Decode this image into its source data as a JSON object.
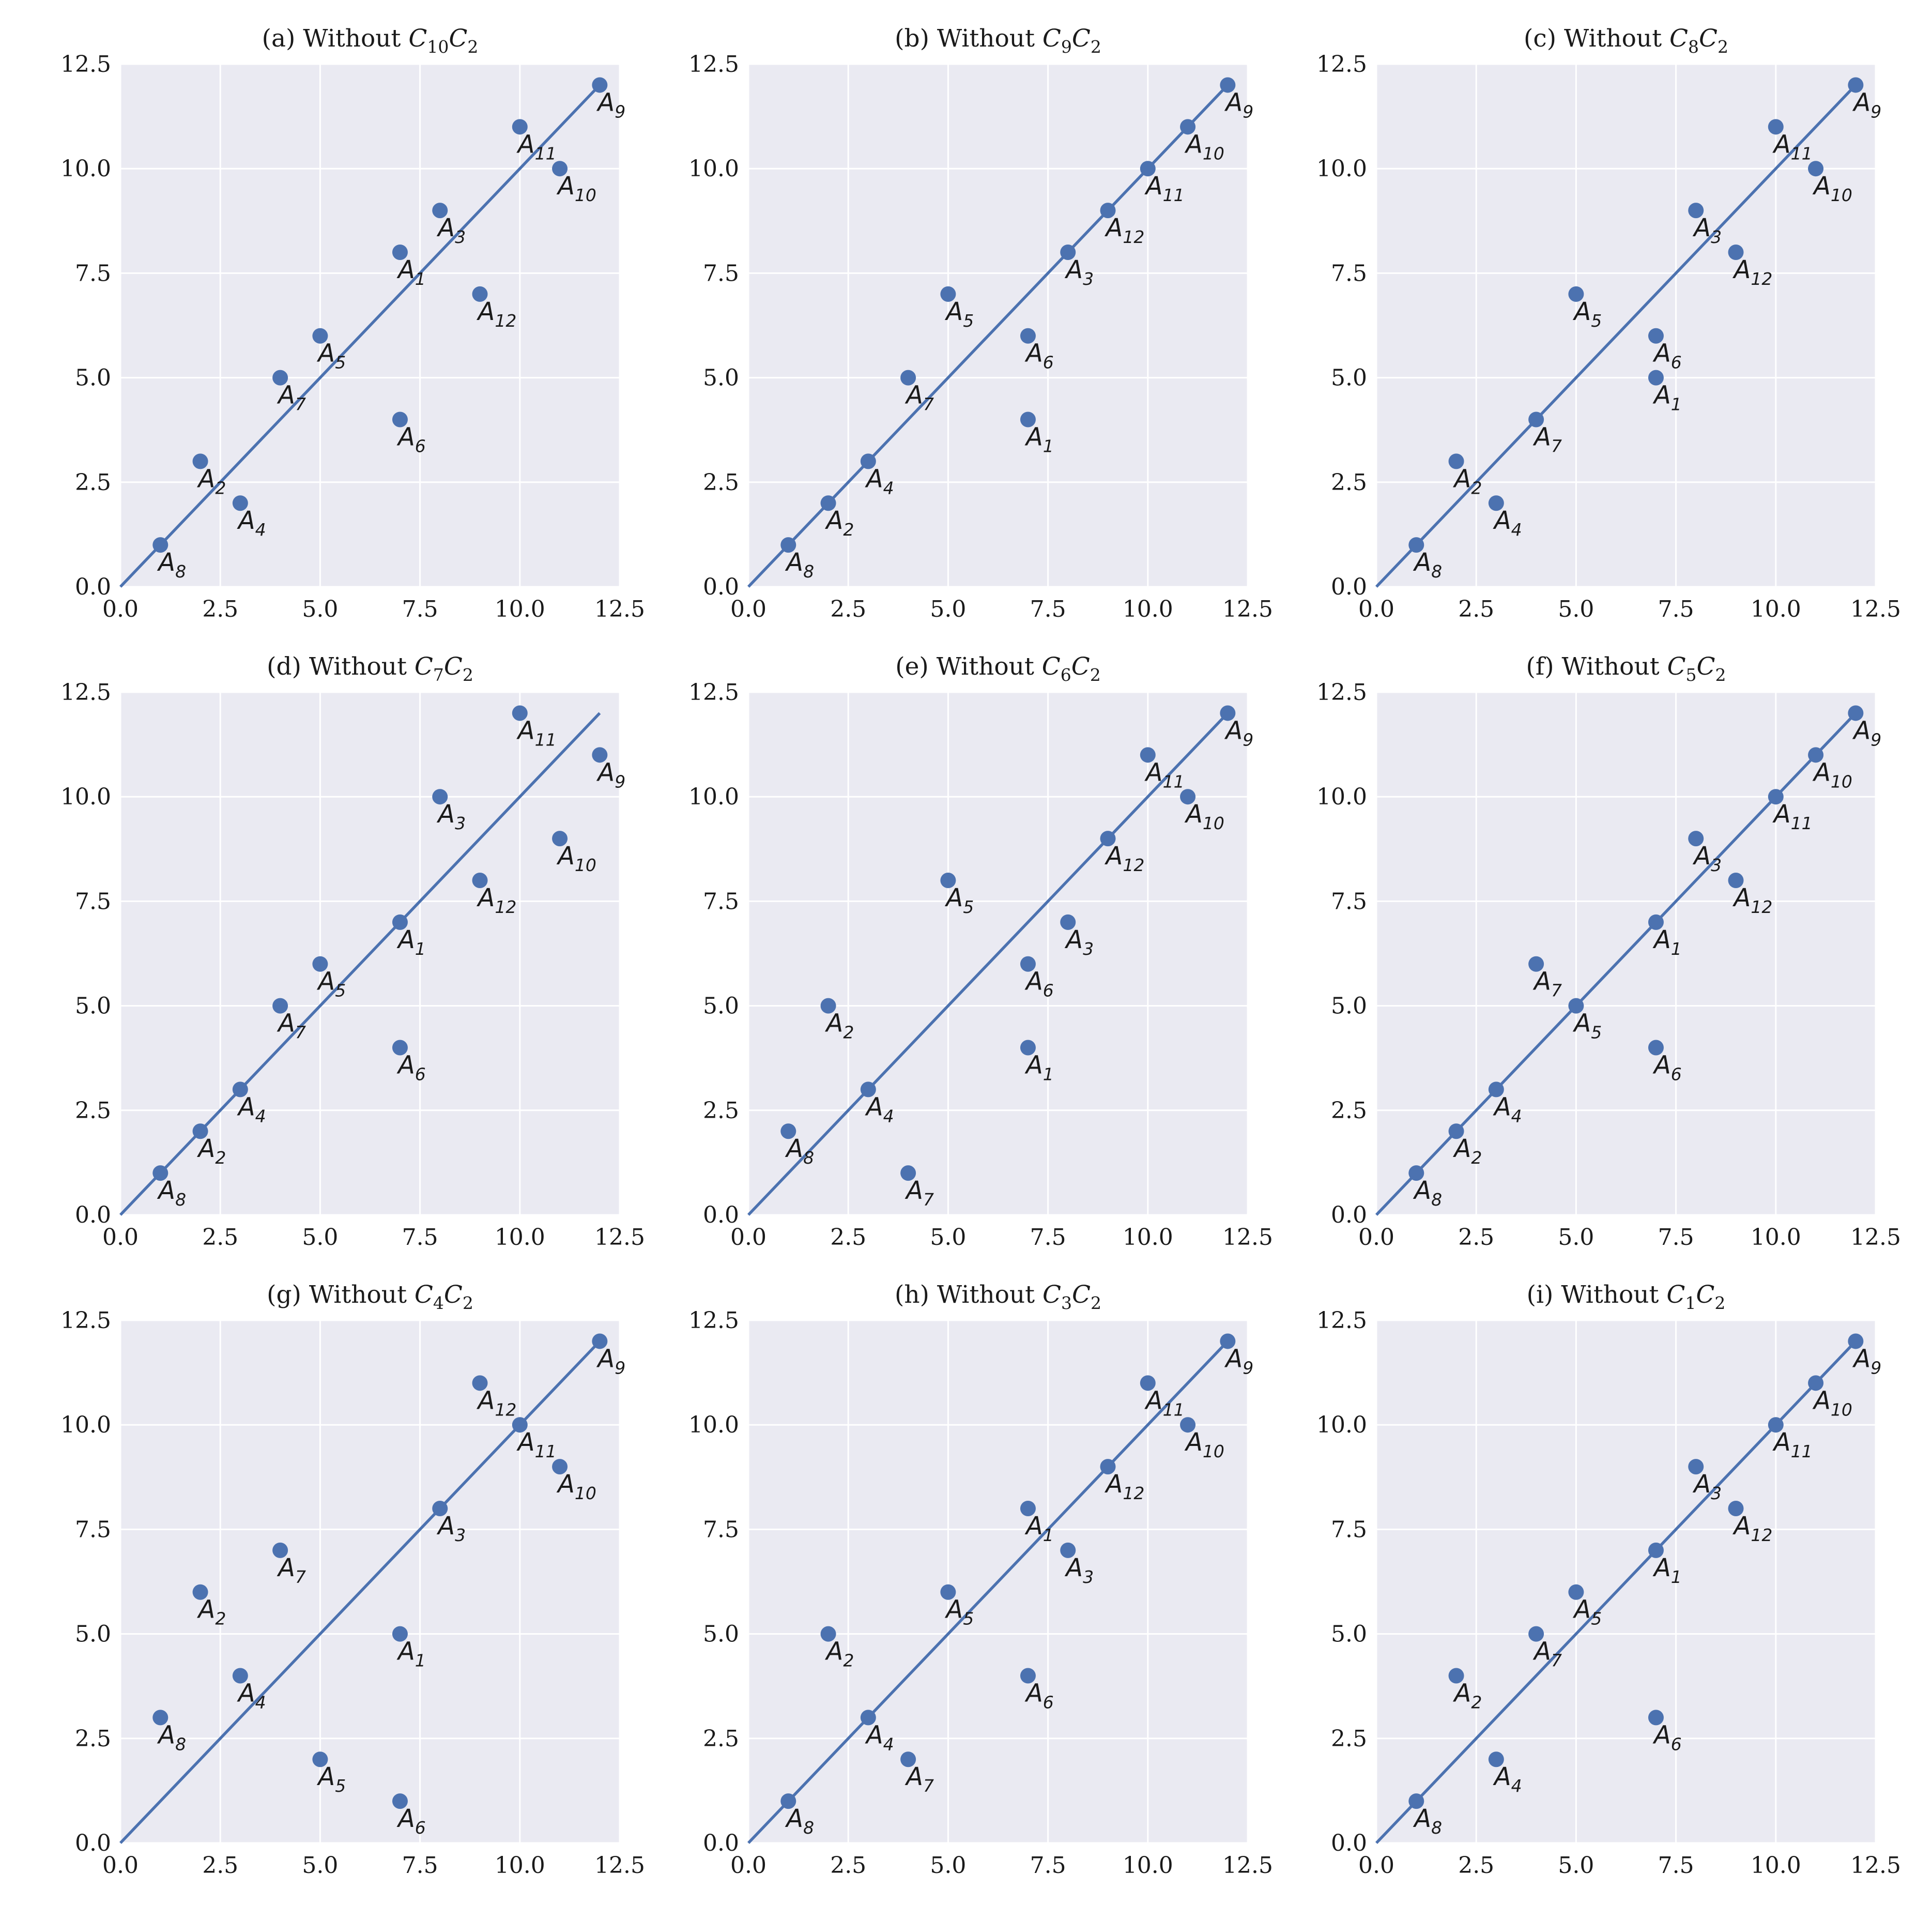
{
  "colors": {
    "plot_bg": "#EAEAF2",
    "grid": "#FFFFFF",
    "marker": "#4C72B0",
    "line": "#4C72B0"
  },
  "chart_data": [
    {
      "type": "scatter",
      "title": "(a) Without C10C2",
      "title_parts": {
        "prefix": "(a) Without",
        "c1": "10",
        "c2": "2"
      },
      "xlim": [
        0,
        12.5
      ],
      "ylim": [
        0,
        12.5
      ],
      "xticks": [
        "0.0",
        "2.5",
        "5.0",
        "7.5",
        "10.0",
        "12.5"
      ],
      "yticks": [
        "0.0",
        "2.5",
        "5.0",
        "7.5",
        "10.0",
        "12.5"
      ],
      "reference_line": {
        "x": [
          0,
          12
        ],
        "y": [
          0,
          12
        ]
      },
      "points": [
        {
          "label": "A1",
          "x": 7,
          "y": 8
        },
        {
          "label": "A2",
          "x": 2,
          "y": 3
        },
        {
          "label": "A3",
          "x": 8,
          "y": 9
        },
        {
          "label": "A4",
          "x": 3,
          "y": 2
        },
        {
          "label": "A5",
          "x": 5,
          "y": 6
        },
        {
          "label": "A6",
          "x": 7,
          "y": 4
        },
        {
          "label": "A7",
          "x": 4,
          "y": 5
        },
        {
          "label": "A8",
          "x": 1,
          "y": 1
        },
        {
          "label": "A9",
          "x": 12,
          "y": 12
        },
        {
          "label": "A10",
          "x": 11,
          "y": 10
        },
        {
          "label": "A11",
          "x": 10,
          "y": 11
        },
        {
          "label": "A12",
          "x": 9,
          "y": 7
        }
      ]
    },
    {
      "type": "scatter",
      "title": "(b) Without C9C2",
      "title_parts": {
        "prefix": "(b) Without",
        "c1": "9",
        "c2": "2"
      },
      "xlim": [
        0,
        12.5
      ],
      "ylim": [
        0,
        12.5
      ],
      "xticks": [
        "0.0",
        "2.5",
        "5.0",
        "7.5",
        "10.0",
        "12.5"
      ],
      "yticks": [
        "0.0",
        "2.5",
        "5.0",
        "7.5",
        "10.0",
        "12.5"
      ],
      "reference_line": {
        "x": [
          0,
          12
        ],
        "y": [
          0,
          12
        ]
      },
      "points": [
        {
          "label": "A1",
          "x": 7,
          "y": 4
        },
        {
          "label": "A2",
          "x": 2,
          "y": 2
        },
        {
          "label": "A3",
          "x": 8,
          "y": 8
        },
        {
          "label": "A4",
          "x": 3,
          "y": 3
        },
        {
          "label": "A5",
          "x": 5,
          "y": 7
        },
        {
          "label": "A6",
          "x": 7,
          "y": 6
        },
        {
          "label": "A7",
          "x": 4,
          "y": 5
        },
        {
          "label": "A8",
          "x": 1,
          "y": 1
        },
        {
          "label": "A9",
          "x": 12,
          "y": 12
        },
        {
          "label": "A10",
          "x": 11,
          "y": 11
        },
        {
          "label": "A11",
          "x": 10,
          "y": 10
        },
        {
          "label": "A12",
          "x": 9,
          "y": 9
        }
      ]
    },
    {
      "type": "scatter",
      "title": "(c) Without C8C2",
      "title_parts": {
        "prefix": "(c) Without",
        "c1": "8",
        "c2": "2"
      },
      "xlim": [
        0,
        12.5
      ],
      "ylim": [
        0,
        12.5
      ],
      "xticks": [
        "0.0",
        "2.5",
        "5.0",
        "7.5",
        "10.0",
        "12.5"
      ],
      "yticks": [
        "0.0",
        "2.5",
        "5.0",
        "7.5",
        "10.0",
        "12.5"
      ],
      "reference_line": {
        "x": [
          0,
          12
        ],
        "y": [
          0,
          12
        ]
      },
      "points": [
        {
          "label": "A1",
          "x": 7,
          "y": 5
        },
        {
          "label": "A2",
          "x": 2,
          "y": 3
        },
        {
          "label": "A3",
          "x": 8,
          "y": 9
        },
        {
          "label": "A4",
          "x": 3,
          "y": 2
        },
        {
          "label": "A5",
          "x": 5,
          "y": 7
        },
        {
          "label": "A6",
          "x": 7,
          "y": 6
        },
        {
          "label": "A7",
          "x": 4,
          "y": 4
        },
        {
          "label": "A8",
          "x": 1,
          "y": 1
        },
        {
          "label": "A9",
          "x": 12,
          "y": 12
        },
        {
          "label": "A10",
          "x": 11,
          "y": 10
        },
        {
          "label": "A11",
          "x": 10,
          "y": 11
        },
        {
          "label": "A12",
          "x": 9,
          "y": 8
        }
      ]
    },
    {
      "type": "scatter",
      "title": "(d) Without C7C2",
      "title_parts": {
        "prefix": "(d) Without",
        "c1": "7",
        "c2": "2"
      },
      "xlim": [
        0,
        12.5
      ],
      "ylim": [
        0,
        12.5
      ],
      "xticks": [
        "0.0",
        "2.5",
        "5.0",
        "7.5",
        "10.0",
        "12.5"
      ],
      "yticks": [
        "0.0",
        "2.5",
        "5.0",
        "7.5",
        "10.0",
        "12.5"
      ],
      "reference_line": {
        "x": [
          0,
          12
        ],
        "y": [
          0,
          12
        ]
      },
      "points": [
        {
          "label": "A1",
          "x": 7,
          "y": 7
        },
        {
          "label": "A2",
          "x": 2,
          "y": 2
        },
        {
          "label": "A3",
          "x": 8,
          "y": 10
        },
        {
          "label": "A4",
          "x": 3,
          "y": 3
        },
        {
          "label": "A5",
          "x": 5,
          "y": 6
        },
        {
          "label": "A6",
          "x": 7,
          "y": 4
        },
        {
          "label": "A7",
          "x": 4,
          "y": 5
        },
        {
          "label": "A8",
          "x": 1,
          "y": 1
        },
        {
          "label": "A9",
          "x": 12,
          "y": 11
        },
        {
          "label": "A10",
          "x": 11,
          "y": 9
        },
        {
          "label": "A11",
          "x": 10,
          "y": 12
        },
        {
          "label": "A12",
          "x": 9,
          "y": 8
        }
      ]
    },
    {
      "type": "scatter",
      "title": "(e) Without C6C2",
      "title_parts": {
        "prefix": "(e) Without",
        "c1": "6",
        "c2": "2"
      },
      "xlim": [
        0,
        12.5
      ],
      "ylim": [
        0,
        12.5
      ],
      "xticks": [
        "0.0",
        "2.5",
        "5.0",
        "7.5",
        "10.0",
        "12.5"
      ],
      "yticks": [
        "0.0",
        "2.5",
        "5.0",
        "7.5",
        "10.0",
        "12.5"
      ],
      "reference_line": {
        "x": [
          0,
          12
        ],
        "y": [
          0,
          12
        ]
      },
      "points": [
        {
          "label": "A1",
          "x": 7,
          "y": 4
        },
        {
          "label": "A2",
          "x": 2,
          "y": 5
        },
        {
          "label": "A3",
          "x": 8,
          "y": 7
        },
        {
          "label": "A4",
          "x": 3,
          "y": 3
        },
        {
          "label": "A5",
          "x": 5,
          "y": 8
        },
        {
          "label": "A6",
          "x": 7,
          "y": 6
        },
        {
          "label": "A7",
          "x": 4,
          "y": 1
        },
        {
          "label": "A8",
          "x": 1,
          "y": 2
        },
        {
          "label": "A9",
          "x": 12,
          "y": 12
        },
        {
          "label": "A10",
          "x": 11,
          "y": 10
        },
        {
          "label": "A11",
          "x": 10,
          "y": 11
        },
        {
          "label": "A12",
          "x": 9,
          "y": 9
        }
      ]
    },
    {
      "type": "scatter",
      "title": "(f) Without C5C2",
      "title_parts": {
        "prefix": "(f) Without",
        "c1": "5",
        "c2": "2"
      },
      "xlim": [
        0,
        12.5
      ],
      "ylim": [
        0,
        12.5
      ],
      "xticks": [
        "0.0",
        "2.5",
        "5.0",
        "7.5",
        "10.0",
        "12.5"
      ],
      "yticks": [
        "0.0",
        "2.5",
        "5.0",
        "7.5",
        "10.0",
        "12.5"
      ],
      "reference_line": {
        "x": [
          0,
          12
        ],
        "y": [
          0,
          12
        ]
      },
      "points": [
        {
          "label": "A1",
          "x": 7,
          "y": 7
        },
        {
          "label": "A2",
          "x": 2,
          "y": 2
        },
        {
          "label": "A3",
          "x": 8,
          "y": 9
        },
        {
          "label": "A4",
          "x": 3,
          "y": 3
        },
        {
          "label": "A5",
          "x": 5,
          "y": 5
        },
        {
          "label": "A6",
          "x": 7,
          "y": 4
        },
        {
          "label": "A7",
          "x": 4,
          "y": 6
        },
        {
          "label": "A8",
          "x": 1,
          "y": 1
        },
        {
          "label": "A9",
          "x": 12,
          "y": 12
        },
        {
          "label": "A10",
          "x": 11,
          "y": 11
        },
        {
          "label": "A11",
          "x": 10,
          "y": 10
        },
        {
          "label": "A12",
          "x": 9,
          "y": 8
        }
      ]
    },
    {
      "type": "scatter",
      "title": "(g) Without C4C2",
      "title_parts": {
        "prefix": "(g) Without",
        "c1": "4",
        "c2": "2"
      },
      "xlim": [
        0,
        12.5
      ],
      "ylim": [
        0,
        12.5
      ],
      "xticks": [
        "0.0",
        "2.5",
        "5.0",
        "7.5",
        "10.0",
        "12.5"
      ],
      "yticks": [
        "0.0",
        "2.5",
        "5.0",
        "7.5",
        "10.0",
        "12.5"
      ],
      "reference_line": {
        "x": [
          0,
          12
        ],
        "y": [
          0,
          12
        ]
      },
      "points": [
        {
          "label": "A1",
          "x": 7,
          "y": 5
        },
        {
          "label": "A2",
          "x": 2,
          "y": 6
        },
        {
          "label": "A3",
          "x": 8,
          "y": 8
        },
        {
          "label": "A4",
          "x": 3,
          "y": 4
        },
        {
          "label": "A5",
          "x": 5,
          "y": 2
        },
        {
          "label": "A6",
          "x": 7,
          "y": 1
        },
        {
          "label": "A7",
          "x": 4,
          "y": 7
        },
        {
          "label": "A8",
          "x": 1,
          "y": 3
        },
        {
          "label": "A9",
          "x": 12,
          "y": 12
        },
        {
          "label": "A10",
          "x": 11,
          "y": 9
        },
        {
          "label": "A11",
          "x": 10,
          "y": 10
        },
        {
          "label": "A12",
          "x": 9,
          "y": 11
        }
      ]
    },
    {
      "type": "scatter",
      "title": "(h) Without C3C2",
      "title_parts": {
        "prefix": "(h) Without",
        "c1": "3",
        "c2": "2"
      },
      "xlim": [
        0,
        12.5
      ],
      "ylim": [
        0,
        12.5
      ],
      "xticks": [
        "0.0",
        "2.5",
        "5.0",
        "7.5",
        "10.0",
        "12.5"
      ],
      "yticks": [
        "0.0",
        "2.5",
        "5.0",
        "7.5",
        "10.0",
        "12.5"
      ],
      "reference_line": {
        "x": [
          0,
          12
        ],
        "y": [
          0,
          12
        ]
      },
      "points": [
        {
          "label": "A1",
          "x": 7,
          "y": 8
        },
        {
          "label": "A2",
          "x": 2,
          "y": 5
        },
        {
          "label": "A3",
          "x": 8,
          "y": 7
        },
        {
          "label": "A4",
          "x": 3,
          "y": 3
        },
        {
          "label": "A5",
          "x": 5,
          "y": 6
        },
        {
          "label": "A6",
          "x": 7,
          "y": 4
        },
        {
          "label": "A7",
          "x": 4,
          "y": 2
        },
        {
          "label": "A8",
          "x": 1,
          "y": 1
        },
        {
          "label": "A9",
          "x": 12,
          "y": 12
        },
        {
          "label": "A10",
          "x": 11,
          "y": 10
        },
        {
          "label": "A11",
          "x": 10,
          "y": 11
        },
        {
          "label": "A12",
          "x": 9,
          "y": 9
        }
      ]
    },
    {
      "type": "scatter",
      "title": "(i) Without C1C2",
      "title_parts": {
        "prefix": "(i) Without",
        "c1": "1",
        "c2": "2"
      },
      "xlim": [
        0,
        12.5
      ],
      "ylim": [
        0,
        12.5
      ],
      "xticks": [
        "0.0",
        "2.5",
        "5.0",
        "7.5",
        "10.0",
        "12.5"
      ],
      "yticks": [
        "0.0",
        "2.5",
        "5.0",
        "7.5",
        "10.0",
        "12.5"
      ],
      "reference_line": {
        "x": [
          0,
          12
        ],
        "y": [
          0,
          12
        ]
      },
      "points": [
        {
          "label": "A1",
          "x": 7,
          "y": 7
        },
        {
          "label": "A2",
          "x": 2,
          "y": 4
        },
        {
          "label": "A3",
          "x": 8,
          "y": 9
        },
        {
          "label": "A4",
          "x": 3,
          "y": 2
        },
        {
          "label": "A5",
          "x": 5,
          "y": 6
        },
        {
          "label": "A6",
          "x": 7,
          "y": 3
        },
        {
          "label": "A7",
          "x": 4,
          "y": 5
        },
        {
          "label": "A8",
          "x": 1,
          "y": 1
        },
        {
          "label": "A9",
          "x": 12,
          "y": 12
        },
        {
          "label": "A10",
          "x": 11,
          "y": 11
        },
        {
          "label": "A11",
          "x": 10,
          "y": 10
        },
        {
          "label": "A12",
          "x": 9,
          "y": 8
        }
      ]
    }
  ]
}
